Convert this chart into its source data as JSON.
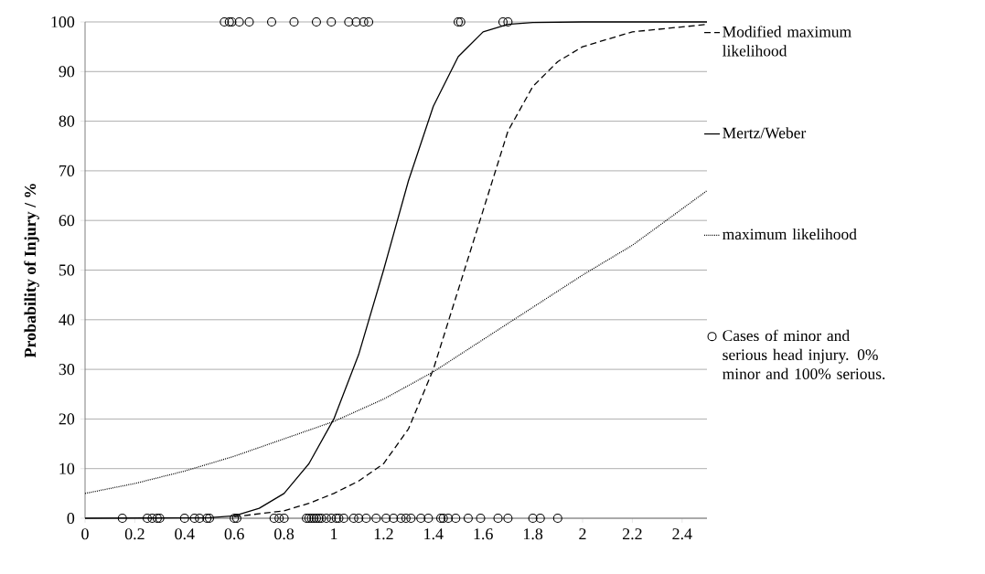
{
  "chart_data": {
    "type": "line",
    "ylabel": "Probability of Injury / %",
    "xlim": [
      0,
      2.5
    ],
    "ylim": [
      0,
      100
    ],
    "xticks": [
      0,
      0.2,
      0.4,
      0.6,
      0.8,
      1,
      1.2,
      1.4,
      1.6,
      1.8,
      2,
      2.2,
      2.4
    ],
    "yticks": [
      0,
      10,
      20,
      30,
      40,
      50,
      60,
      70,
      80,
      90,
      100
    ],
    "grid": "y",
    "legend": "right",
    "series": [
      {
        "name": "Modified maximum likelihood",
        "type": "line",
        "line_style": "dashed",
        "color": "#000000",
        "x": [
          0.6,
          0.8,
          0.9,
          1.0,
          1.1,
          1.2,
          1.3,
          1.4,
          1.5,
          1.6,
          1.7,
          1.8,
          1.9,
          2.0,
          2.2,
          2.5
        ],
        "values": [
          0.3,
          1.5,
          3,
          5,
          7.5,
          11,
          18,
          30,
          46,
          62,
          78,
          87,
          92,
          95,
          98,
          99.5
        ]
      },
      {
        "name": "Mertz/Weber",
        "type": "line",
        "line_style": "solid",
        "color": "#000000",
        "x": [
          0,
          0.5,
          0.6,
          0.7,
          0.8,
          0.9,
          1.0,
          1.1,
          1.2,
          1.3,
          1.4,
          1.5,
          1.6,
          1.7,
          1.8,
          2.0,
          2.5
        ],
        "values": [
          0,
          0.1,
          0.5,
          2,
          5,
          11,
          20,
          33,
          50,
          68,
          83,
          93,
          98,
          99.5,
          99.9,
          100,
          100
        ]
      },
      {
        "name": "maximum likelihood",
        "type": "line",
        "line_style": "dotted",
        "color": "#000000",
        "x": [
          0,
          0.2,
          0.4,
          0.6,
          0.8,
          1.0,
          1.2,
          1.4,
          1.6,
          1.8,
          2.0,
          2.2,
          2.5
        ],
        "values": [
          5,
          7,
          9.5,
          12.5,
          16,
          19.5,
          24,
          29.5,
          36,
          42.5,
          49,
          55,
          66
        ]
      },
      {
        "name": "Cases of minor and serious head injury. 0% minor and 100% serious.",
        "type": "scatter",
        "marker": "circle",
        "color": "#000000",
        "x": [
          0.56,
          0.58,
          0.59,
          0.62,
          0.66,
          0.75,
          0.84,
          0.93,
          0.99,
          1.06,
          1.09,
          1.12,
          1.14,
          1.5,
          1.51,
          1.68,
          1.7,
          0.15,
          0.25,
          0.27,
          0.29,
          0.3,
          0.4,
          0.44,
          0.46,
          0.49,
          0.5,
          0.6,
          0.61,
          0.76,
          0.78,
          0.8,
          0.89,
          0.9,
          0.91,
          0.92,
          0.93,
          0.94,
          0.95,
          0.97,
          0.99,
          1.01,
          1.02,
          1.04,
          1.08,
          1.1,
          1.13,
          1.17,
          1.21,
          1.24,
          1.27,
          1.29,
          1.31,
          1.35,
          1.38,
          1.43,
          1.44,
          1.46,
          1.49,
          1.54,
          1.59,
          1.66,
          1.7,
          1.8,
          1.83,
          1.9
        ],
        "values": [
          100,
          100,
          100,
          100,
          100,
          100,
          100,
          100,
          100,
          100,
          100,
          100,
          100,
          100,
          100,
          100,
          100,
          0,
          0,
          0,
          0,
          0,
          0,
          0,
          0,
          0,
          0,
          0,
          0,
          0,
          0,
          0,
          0,
          0,
          0,
          0,
          0,
          0,
          0,
          0,
          0,
          0,
          0,
          0,
          0,
          0,
          0,
          0,
          0,
          0,
          0,
          0,
          0,
          0,
          0,
          0,
          0,
          0,
          0,
          0,
          0,
          0,
          0,
          0,
          0,
          0
        ]
      }
    ]
  }
}
